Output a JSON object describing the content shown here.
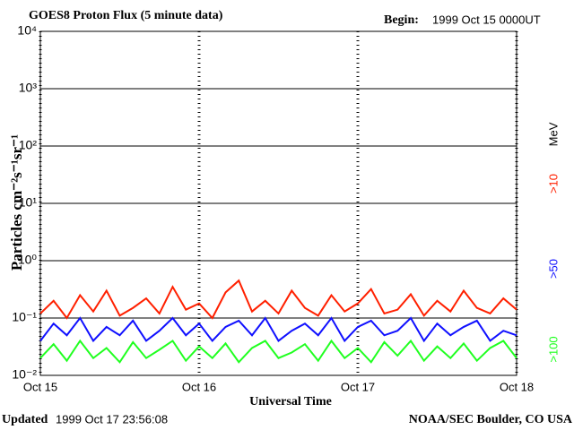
{
  "chart_data": {
    "type": "line",
    "title": "GOES8 Proton Flux (5 minute data)",
    "begin_label": "Begin:",
    "begin_value": "1999 Oct 15 0000UT",
    "y_label": "Particles cm⁻²s⁻¹sr⁻¹",
    "x_label": "Universal Time",
    "updated_label": "Updated",
    "updated_value": "1999 Oct 17 23:56:08",
    "credit": "NOAA/SEC Boulder, CO USA",
    "legend_unit": "MeV",
    "log_y": true,
    "grid": true,
    "xlim": [
      0,
      72
    ],
    "xticks": [
      {
        "value": 0,
        "label": "Oct 15"
      },
      {
        "value": 24,
        "label": "Oct 16"
      },
      {
        "value": 48,
        "label": "Oct 17"
      },
      {
        "value": 72,
        "label": "Oct 18"
      }
    ],
    "ylim": [
      0.01,
      10000
    ],
    "yticks": [
      {
        "value": 0.01,
        "label": "10⁻²"
      },
      {
        "value": 0.1,
        "label": "10⁻¹"
      },
      {
        "value": 1,
        "label": "10⁰"
      },
      {
        "value": 10,
        "label": "10¹"
      },
      {
        "value": 100,
        "label": "10²"
      },
      {
        "value": 1000,
        "label": "10³"
      },
      {
        "value": 10000,
        "label": "10⁴"
      }
    ],
    "x": [
      0,
      2,
      4,
      6,
      8,
      10,
      12,
      14,
      16,
      18,
      20,
      22,
      24,
      26,
      28,
      30,
      32,
      34,
      36,
      38,
      40,
      42,
      44,
      46,
      48,
      50,
      52,
      54,
      56,
      58,
      60,
      62,
      64,
      66,
      68,
      70,
      72
    ],
    "series": [
      {
        "name": ">10",
        "color": "#ff2000",
        "values": [
          0.12,
          0.2,
          0.1,
          0.25,
          0.13,
          0.3,
          0.11,
          0.15,
          0.22,
          0.12,
          0.35,
          0.14,
          0.18,
          0.1,
          0.28,
          0.45,
          0.13,
          0.2,
          0.12,
          0.3,
          0.15,
          0.11,
          0.25,
          0.13,
          0.18,
          0.32,
          0.12,
          0.14,
          0.26,
          0.11,
          0.2,
          0.13,
          0.3,
          0.15,
          0.12,
          0.22,
          0.14
        ]
      },
      {
        "name": ">50",
        "color": "#1010ff",
        "values": [
          0.04,
          0.08,
          0.05,
          0.1,
          0.04,
          0.07,
          0.05,
          0.09,
          0.04,
          0.06,
          0.1,
          0.05,
          0.08,
          0.04,
          0.07,
          0.09,
          0.05,
          0.1,
          0.04,
          0.06,
          0.08,
          0.05,
          0.1,
          0.04,
          0.07,
          0.09,
          0.05,
          0.06,
          0.1,
          0.04,
          0.08,
          0.05,
          0.07,
          0.09,
          0.04,
          0.06,
          0.05
        ]
      },
      {
        "name": ">100",
        "color": "#20ff20",
        "values": [
          0.02,
          0.035,
          0.018,
          0.04,
          0.02,
          0.03,
          0.017,
          0.038,
          0.02,
          0.028,
          0.04,
          0.018,
          0.032,
          0.02,
          0.036,
          0.017,
          0.03,
          0.04,
          0.02,
          0.025,
          0.035,
          0.018,
          0.04,
          0.02,
          0.03,
          0.017,
          0.038,
          0.022,
          0.04,
          0.018,
          0.032,
          0.02,
          0.036,
          0.018,
          0.03,
          0.04,
          0.02
        ]
      }
    ]
  }
}
